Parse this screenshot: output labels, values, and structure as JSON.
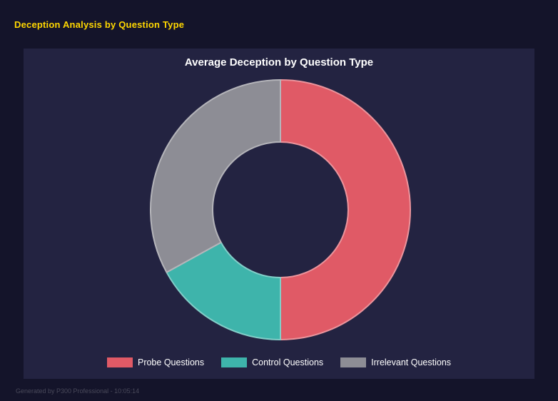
{
  "page": {
    "title": "Deception Analysis by Question Type",
    "footer": "Generated by P300 Professional - 10:05:14"
  },
  "theme": {
    "page_bg": "#14142a",
    "panel_bg": "#232341",
    "accent_yellow": "#ffd700",
    "text_white": "#ffffff",
    "footer_gray": "#49495a"
  },
  "chart_data": {
    "type": "pie",
    "subtype": "donut",
    "title": "Average Deception by Question Type",
    "categories": [
      "Probe Questions",
      "Control Questions",
      "Irrelevant Questions"
    ],
    "values": [
      50,
      17,
      33
    ],
    "unit": "percent",
    "colors": [
      "#e05a66",
      "#3eb4ab",
      "#8d8d95"
    ],
    "start_angle_deg": 0,
    "direction": "clockwise",
    "donut_hole_ratio": 0.52,
    "legend_position": "bottom",
    "legend_entries": [
      "Probe Questions",
      "Control Questions",
      "Irrelevant Questions"
    ]
  }
}
